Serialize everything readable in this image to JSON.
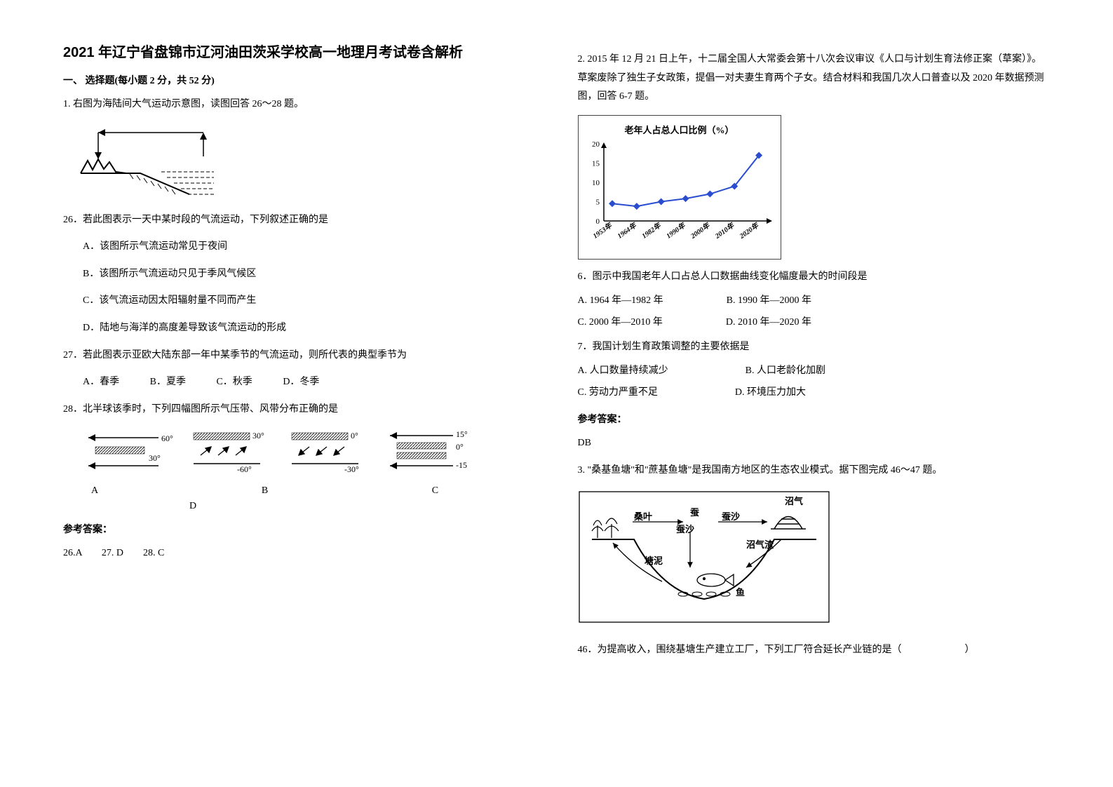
{
  "title": "2021 年辽宁省盘锦市辽河油田茨采学校高一地理月考试卷含解析",
  "section1_heading": "一、 选择题(每小题 2 分，共 52 分)",
  "q1_intro": "1. 右图为海陆间大气运动示意图，读图回答 26～28 题。",
  "q26": "26．若此图表示一天中某时段的气流运动，下列叙述正确的是",
  "q26_A": "A．该图所示气流运动常见于夜间",
  "q26_B": "B．该图所示气流运动只见于季风气候区",
  "q26_C": "C．该气流运动因太阳辐射量不同而产生",
  "q26_D": "D．陆地与海洋的高度差导致该气流运动的形成",
  "q27": "27．若此图表示亚欧大陆东部一年中某季节的气流运动，则所代表的典型季节为",
  "q27_A": "A．春季",
  "q27_B": "B．夏季",
  "q27_C": "C．秋季",
  "q27_D": "D．冬季",
  "q28": "28．北半球该季时，下列四幅图所示气压带、风带分布正确的是",
  "press_labels": {
    "A": "A",
    "B": "B",
    "C": "C",
    "D": "D"
  },
  "answer_heading": "参考答案：",
  "answers_26_28": "26.A        27. D        28. C",
  "q2_intro": "2. 2015 年 12 月 21 日上午，十二届全国人大常委会第十八次会议审议《人口与计划生育法修正案（草案）》。草案废除了独生子女政策，提倡一对夫妻生育两个子女。结合材料和我国几次人口普查以及 2020 年数据预测图，回答 6-7 题。",
  "chart": {
    "title": "老年人占总人口比例（%）",
    "years": [
      "1953年",
      "1964年",
      "1982年",
      "1990年",
      "2000年",
      "2010年",
      "2020年"
    ],
    "values": [
      4.5,
      3.8,
      5,
      5.8,
      7,
      9,
      17
    ],
    "y_ticks": [
      0,
      5,
      10,
      15,
      20
    ],
    "point_color": "#2a4dd0",
    "line_color": "#2a4dd0",
    "axis_color": "#000000",
    "background": "#ffffff"
  },
  "q6": "6．图示中我国老年人口占总人口数据曲线变化幅度最大的时间段是",
  "q6_A": "A. 1964 年—1982 年",
  "q6_B": "B. 1990 年—2000 年",
  "q6_C": "C. 2000 年—2010 年",
  "q6_D": "D. 2010 年—2020 年",
  "q7": "7．我国计划生育政策调整的主要依据是",
  "q7_A": "A. 人口数量持续减少",
  "q7_B": "B. 人口老龄化加剧",
  "q7_C": "C. 劳动力严重不足",
  "q7_D": "D. 环境压力加大",
  "answers_6_7": "DB",
  "q3_intro": "3. \"桑基鱼塘\"和\"蔗基鱼塘\"是我国南方地区的生态农业模式。据下图完成 46～47 题。",
  "pond": {
    "labels": {
      "mulberry": "桑叶",
      "silkworm_sand": "蚕沙",
      "silkworm_sand2": "蚕沙",
      "silkworm": "蚕",
      "biogas": "沼气",
      "biogas_residue": "沼气渣",
      "pond_mud": "塘泥",
      "fish": "鱼"
    }
  },
  "q46": "46．为提高收入，围绕基塘生产建立工厂，下列工厂符合延长产业链的是（",
  "q46_close": "）",
  "press_vals": {
    "p60": "60°",
    "p30": "30°",
    "n30": "-30°",
    "n60": "-60°",
    "p0": "0°",
    "p15": "15°",
    "n0": "0°",
    "n15": "-15"
  }
}
